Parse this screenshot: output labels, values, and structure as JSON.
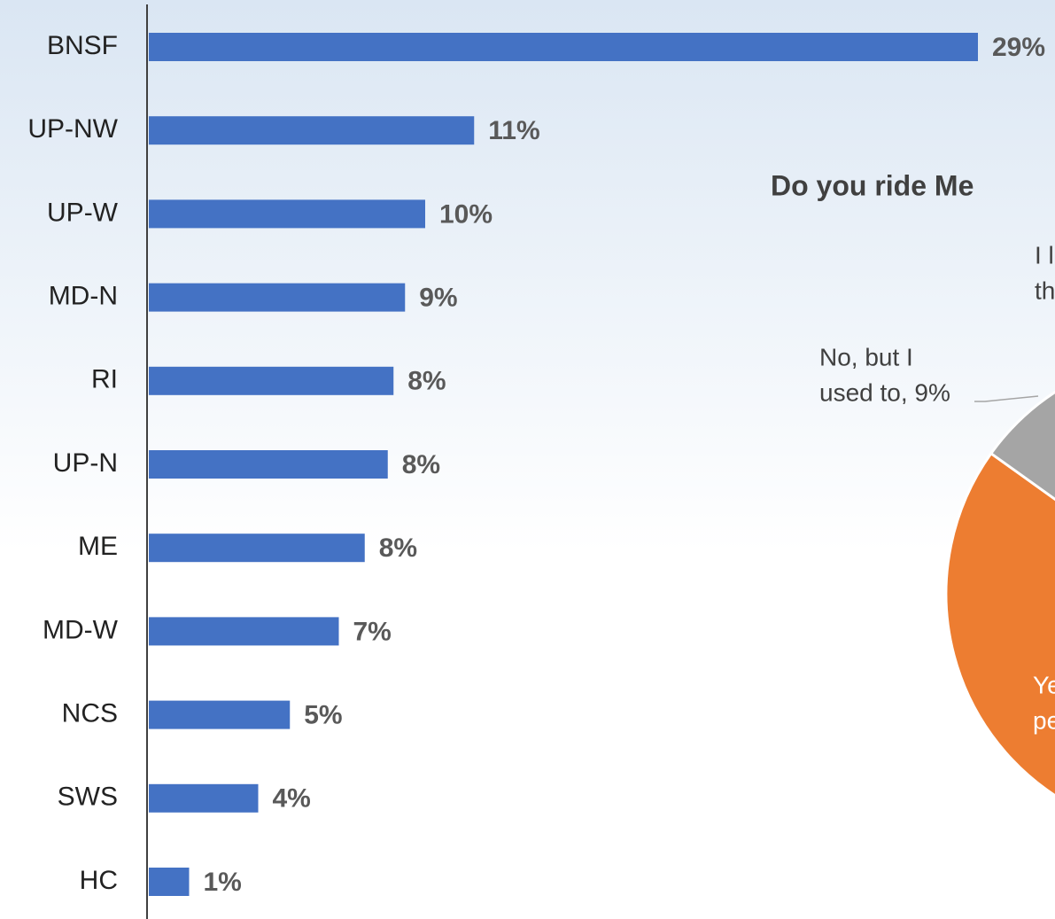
{
  "chart_data": [
    {
      "type": "hbar",
      "categories": [
        "BNSF",
        "UP-NW",
        "UP-W",
        "MD-N",
        "RI",
        "UP-N",
        "ME",
        "MD-W",
        "NCS",
        "SWS",
        "HC"
      ],
      "values": [
        28.8,
        11.3,
        9.6,
        8.9,
        8.5,
        8.3,
        7.5,
        6.6,
        4.9,
        3.8,
        1.4
      ],
      "value_labels": [
        "29%",
        "11%",
        "10%",
        "9%",
        "8%",
        "8%",
        "8%",
        "7%",
        "5%",
        "4%",
        "1%"
      ],
      "color": "#4472c4",
      "xlim": [
        0,
        31
      ]
    },
    {
      "type": "pie",
      "title": "Do you ride Me",
      "labels": [
        [
          "I l",
          "th"
        ],
        [
          "Ye",
          "pe"
        ],
        [
          "No, but I",
          "used to, 9%"
        ]
      ],
      "values": [
        35,
        56,
        9
      ],
      "colors": [
        "#4472c4",
        "#ed7d31",
        "#a5a5a5"
      ]
    }
  ]
}
